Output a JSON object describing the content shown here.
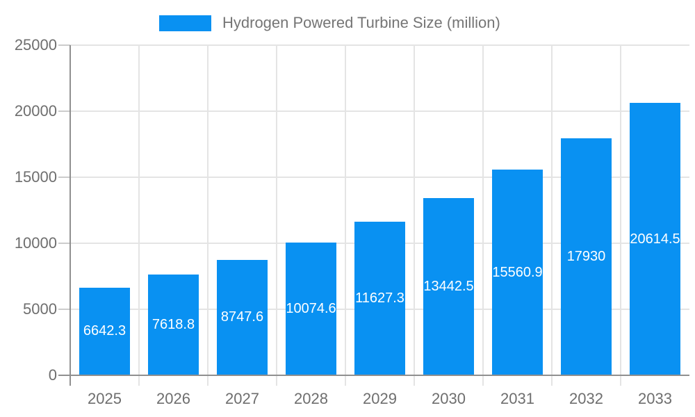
{
  "chart_data": {
    "type": "bar",
    "legend_label": "Hydrogen Powered Turbine Size (million)",
    "categories": [
      "2025",
      "2026",
      "2027",
      "2028",
      "2029",
      "2030",
      "2031",
      "2032",
      "2033"
    ],
    "values": [
      6642.3,
      7618.8,
      8747.6,
      10074.6,
      11627.3,
      13442.5,
      15560.9,
      17930,
      20614.5
    ],
    "bar_labels": [
      "6642.3",
      "7618.8",
      "8747.6",
      "10074.6",
      "11627.3",
      "13442.5",
      "15560.9",
      "17930",
      "20614.5"
    ],
    "ylim": [
      0,
      25000
    ],
    "yticks": [
      0,
      5000,
      10000,
      15000,
      20000,
      25000
    ],
    "ytick_labels": [
      "0",
      "5000",
      "10000",
      "15000",
      "20000",
      "25000"
    ],
    "grid": true,
    "legend_position": "top",
    "colors": {
      "bar": "#0991f2",
      "axis_text": "#6e6e6e",
      "legend_text": "#757575",
      "gridline": "#e4e4e4",
      "tick": "#cccccc",
      "axis_line": "#8f8f8f",
      "bar_label": "#ffffff",
      "background": "#ffffff"
    }
  }
}
